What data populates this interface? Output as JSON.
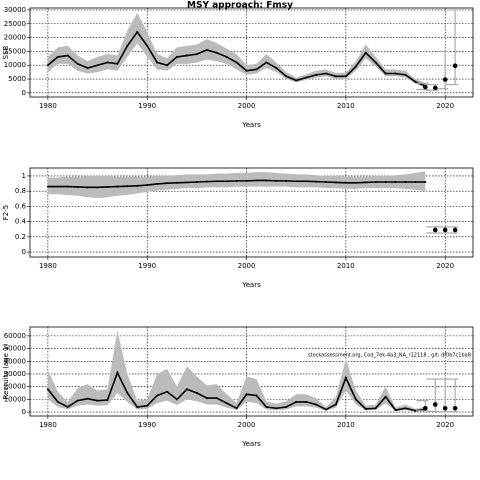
{
  "chart_data": [
    {
      "type": "line",
      "title": "MSY approach: Fmsy",
      "ylabel": "SSB",
      "xlabel": "Years",
      "xlim": [
        1978.2,
        2022.8
      ],
      "xticks": [
        1980,
        1990,
        2000,
        2010,
        2020
      ],
      "ylim": [
        -1500,
        30700
      ],
      "yticks": [
        0,
        5000,
        10000,
        15000,
        20000,
        25000,
        30000
      ],
      "grid": true,
      "x": [
        1980,
        1981,
        1982,
        1983,
        1984,
        1985,
        1986,
        1987,
        1988,
        1989,
        1990,
        1991,
        1992,
        1993,
        1994,
        1995,
        1996,
        1997,
        1998,
        1999,
        2000,
        2001,
        2002,
        2003,
        2004,
        2005,
        2006,
        2007,
        2008,
        2009,
        2010,
        2011,
        2012,
        2013,
        2014,
        2015,
        2016,
        2017,
        2018
      ],
      "series": [
        {
          "color": "#000000",
          "band_color": "#bbbbbb",
          "values": [
            10000,
            13000,
            13500,
            10500,
            9000,
            10000,
            11000,
            10500,
            17000,
            22000,
            17000,
            11000,
            10000,
            13000,
            13500,
            14000,
            15500,
            14500,
            13000,
            11000,
            8000,
            8500,
            11000,
            9000,
            6000,
            4500,
            5500,
            6500,
            7000,
            6000,
            6000,
            9500,
            14500,
            11000,
            7000,
            7000,
            6500,
            4000,
            2500
          ],
          "lower": [
            7500,
            10500,
            10500,
            8000,
            7000,
            7500,
            8500,
            8000,
            13000,
            18000,
            13000,
            8500,
            8000,
            10500,
            10500,
            11000,
            12000,
            11500,
            10500,
            8500,
            6500,
            7000,
            9000,
            7500,
            5000,
            3800,
            4700,
            5500,
            6000,
            5000,
            5000,
            8000,
            12500,
            9500,
            6000,
            6000,
            5600,
            3300,
            1800
          ],
          "upper": [
            13000,
            16500,
            17000,
            13500,
            11500,
            13000,
            14000,
            13500,
            22500,
            29000,
            22000,
            14000,
            12500,
            16500,
            17000,
            17500,
            19500,
            18000,
            16000,
            14000,
            10000,
            10500,
            14000,
            11000,
            7500,
            5500,
            6700,
            8000,
            8500,
            7200,
            7300,
            11500,
            17500,
            13000,
            8500,
            8500,
            8000,
            5000,
            3500
          ]
        }
      ],
      "forecast": {
        "color": "#000000",
        "bar_color": "#aaaaaa",
        "x": [
          2018,
          2019,
          2020,
          2021
        ],
        "values": [
          2100,
          1800,
          4800,
          9800
        ],
        "lower": [
          1200,
          900,
          1500,
          3000
        ],
        "upper": [
          3500,
          3000,
          15000,
          30000
        ]
      }
    },
    {
      "type": "line",
      "ylabel": "F2-5",
      "xlabel": "Years",
      "xlim": [
        1978.2,
        2022.8
      ],
      "xticks": [
        1980,
        1990,
        2000,
        2010,
        2020
      ],
      "ylim": [
        -0.065,
        1.104
      ],
      "yticks": [
        0,
        0.2,
        0.4,
        0.6,
        0.8,
        1
      ],
      "grid": true,
      "x": [
        1980,
        1981,
        1982,
        1983,
        1984,
        1985,
        1986,
        1987,
        1988,
        1989,
        1990,
        1991,
        1992,
        1993,
        1994,
        1995,
        1996,
        1997,
        1998,
        1999,
        2000,
        2001,
        2002,
        2003,
        2004,
        2005,
        2006,
        2007,
        2008,
        2009,
        2010,
        2011,
        2012,
        2013,
        2014,
        2015,
        2016,
        2017,
        2018
      ],
      "series": [
        {
          "color": "#000000",
          "band_color": "#bbbbbb",
          "values": [
            0.86,
            0.86,
            0.86,
            0.855,
            0.85,
            0.85,
            0.855,
            0.86,
            0.865,
            0.87,
            0.88,
            0.895,
            0.905,
            0.91,
            0.915,
            0.92,
            0.925,
            0.93,
            0.93,
            0.935,
            0.935,
            0.94,
            0.94,
            0.935,
            0.935,
            0.93,
            0.93,
            0.925,
            0.92,
            0.915,
            0.91,
            0.91,
            0.915,
            0.92,
            0.92,
            0.92,
            0.92,
            0.92,
            0.92
          ],
          "lower": [
            0.76,
            0.76,
            0.75,
            0.74,
            0.72,
            0.71,
            0.72,
            0.74,
            0.75,
            0.77,
            0.79,
            0.81,
            0.82,
            0.83,
            0.84,
            0.84,
            0.85,
            0.85,
            0.85,
            0.86,
            0.86,
            0.86,
            0.86,
            0.86,
            0.86,
            0.85,
            0.85,
            0.85,
            0.84,
            0.84,
            0.83,
            0.83,
            0.84,
            0.84,
            0.84,
            0.84,
            0.83,
            0.82,
            0.8
          ],
          "upper": [
            0.98,
            0.98,
            0.99,
            0.99,
            1,
            1,
            1,
            0.99,
            0.99,
            0.99,
            0.99,
            1,
            1,
            1.01,
            1.02,
            1.02,
            1.02,
            1.03,
            1.03,
            1.04,
            1.04,
            1.05,
            1.05,
            1.04,
            1.03,
            1.02,
            1.02,
            1.01,
            1,
            1,
            0.99,
            0.99,
            0.99,
            1,
            1,
            1.01,
            1.02,
            1.04,
            1.06
          ]
        }
      ],
      "forecast": {
        "color": "#000000",
        "bar_color": "#aaaaaa",
        "x": [
          2019,
          2020,
          2021
        ],
        "values": [
          0.29,
          0.29,
          0.29
        ],
        "lower": [
          0.25,
          0.25,
          0.25
        ],
        "upper": [
          0.33,
          0.33,
          0.33
        ]
      }
    },
    {
      "type": "line",
      "ylabel": "Recruits (age 1)",
      "xlabel": "Years",
      "annotation": "stockassessment.org, Cod_7ek-4a3_NA_r12118 , git: df0b7c1ba8",
      "xlim": [
        1978.2,
        2022.8
      ],
      "xticks": [
        1980,
        1990,
        2000,
        2010,
        2020
      ],
      "ylim": [
        -3100,
        67000
      ],
      "yticks": [
        0,
        10000,
        20000,
        30000,
        40000,
        50000,
        60000
      ],
      "grid": true,
      "x": [
        1980,
        1981,
        1982,
        1983,
        1984,
        1985,
        1986,
        1987,
        1988,
        1989,
        1990,
        1991,
        1992,
        1993,
        1994,
        1995,
        1996,
        1997,
        1998,
        1999,
        2000,
        2001,
        2002,
        2003,
        2004,
        2005,
        2006,
        2007,
        2008,
        2009,
        2010,
        2011,
        2012,
        2013,
        2014,
        2015,
        2016,
        2017,
        2018
      ],
      "series": [
        {
          "color": "#000000",
          "band_color": "#bbbbbb",
          "values": [
            18000,
            8000,
            4000,
            9000,
            10500,
            9000,
            9500,
            31000,
            15000,
            4000,
            5000,
            13000,
            16000,
            10000,
            18000,
            15000,
            11000,
            11000,
            7000,
            3000,
            14000,
            13000,
            4000,
            3000,
            4000,
            8000,
            8000,
            6000,
            2000,
            6000,
            27000,
            10000,
            2500,
            3000,
            12000,
            1500,
            3000,
            1000,
            2000
          ],
          "lower": [
            10000,
            4000,
            2000,
            5000,
            6000,
            5000,
            5500,
            15000,
            8000,
            2000,
            2500,
            7000,
            9000,
            5500,
            10000,
            8500,
            6000,
            6000,
            3500,
            1500,
            8000,
            7000,
            2000,
            1500,
            2000,
            4500,
            4500,
            3500,
            1000,
            3500,
            17000,
            6000,
            1300,
            1500,
            7000,
            700,
            1500,
            400,
            800
          ],
          "upper": [
            33000,
            16000,
            8000,
            19000,
            22000,
            17000,
            18000,
            64000,
            30000,
            9000,
            10000,
            30000,
            34000,
            20000,
            36000,
            28000,
            21000,
            22000,
            14000,
            7000,
            28000,
            26000,
            8500,
            6500,
            8500,
            14000,
            14000,
            11000,
            4000,
            12000,
            42000,
            17000,
            5000,
            6000,
            20000,
            3500,
            6000,
            2500,
            4500
          ]
        }
      ],
      "forecast": {
        "color": "#000000",
        "bar_color": "#aaaaaa",
        "x": [
          2018,
          2019,
          2020,
          2021
        ],
        "values": [
          3000,
          6000,
          3000,
          3000
        ],
        "lower": [
          1000,
          500,
          300,
          300
        ],
        "upper": [
          9000,
          26000,
          26000,
          26000
        ]
      }
    }
  ]
}
